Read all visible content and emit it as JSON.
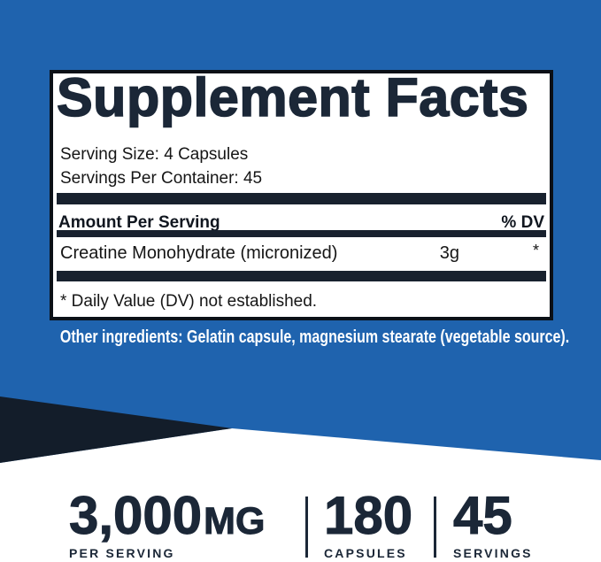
{
  "colors": {
    "background_blue": "#1f63ae",
    "dark_navy": "#131d2a",
    "panel_border_black": "#0b1017",
    "text_navy": "#1b2737",
    "panel_bg": "#ffffff",
    "other_ingredients_text": "#ffffff"
  },
  "panel": {
    "title": "Supplement Facts",
    "serving_size": "Serving Size: 4 Capsules",
    "servings_per_container": "Servings Per Container: 45",
    "amount_per_serving_label": "Amount Per Serving",
    "dv_label": "% DV",
    "ingredient": {
      "name": "Creatine Monohydrate (micronized)",
      "amount": "3g",
      "dv": "*"
    },
    "footnote": "* Daily Value (DV) not established."
  },
  "other_ingredients": "Other ingredients: Gelatin capsule, magnesium stearate (vegetable source).",
  "stats": [
    {
      "value": "3,000",
      "unit": "MG",
      "label": "PER SERVING"
    },
    {
      "value": "180",
      "unit": "",
      "label": "CAPSULES"
    },
    {
      "value": "45",
      "unit": "",
      "label": "SERVINGS"
    }
  ]
}
